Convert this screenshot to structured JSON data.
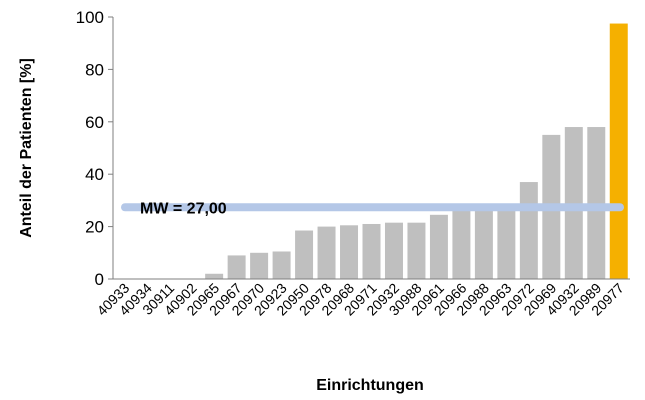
{
  "chart_data": {
    "type": "bar",
    "xlabel": "Einrichtungen",
    "ylabel": "Anteil der Patienten [%]",
    "ylim": [
      0,
      100
    ],
    "yticks": [
      0,
      20,
      40,
      60,
      80,
      100
    ],
    "grid": false,
    "categories": [
      "40933",
      "40934",
      "30911",
      "40902",
      "20965",
      "20967",
      "20970",
      "20923",
      "20950",
      "20978",
      "20968",
      "20971",
      "20932",
      "30988",
      "20961",
      "20966",
      "20988",
      "20963",
      "20972",
      "20969",
      "40932",
      "20989",
      "20977"
    ],
    "values": [
      0,
      0,
      0,
      0,
      2,
      9,
      10,
      10.5,
      18.5,
      20,
      20.5,
      21,
      21.5,
      21.5,
      24.5,
      26,
      27,
      27,
      37,
      55,
      58,
      58,
      97.5
    ],
    "highlight_category": "20977",
    "colors": {
      "bar": "#bfbfbf",
      "highlight": "#f5b000",
      "mean_line": "#b4c7e7",
      "axis": "#7f7f7f"
    },
    "mean": {
      "value": 27.0,
      "label": "MW = 27,00"
    }
  }
}
